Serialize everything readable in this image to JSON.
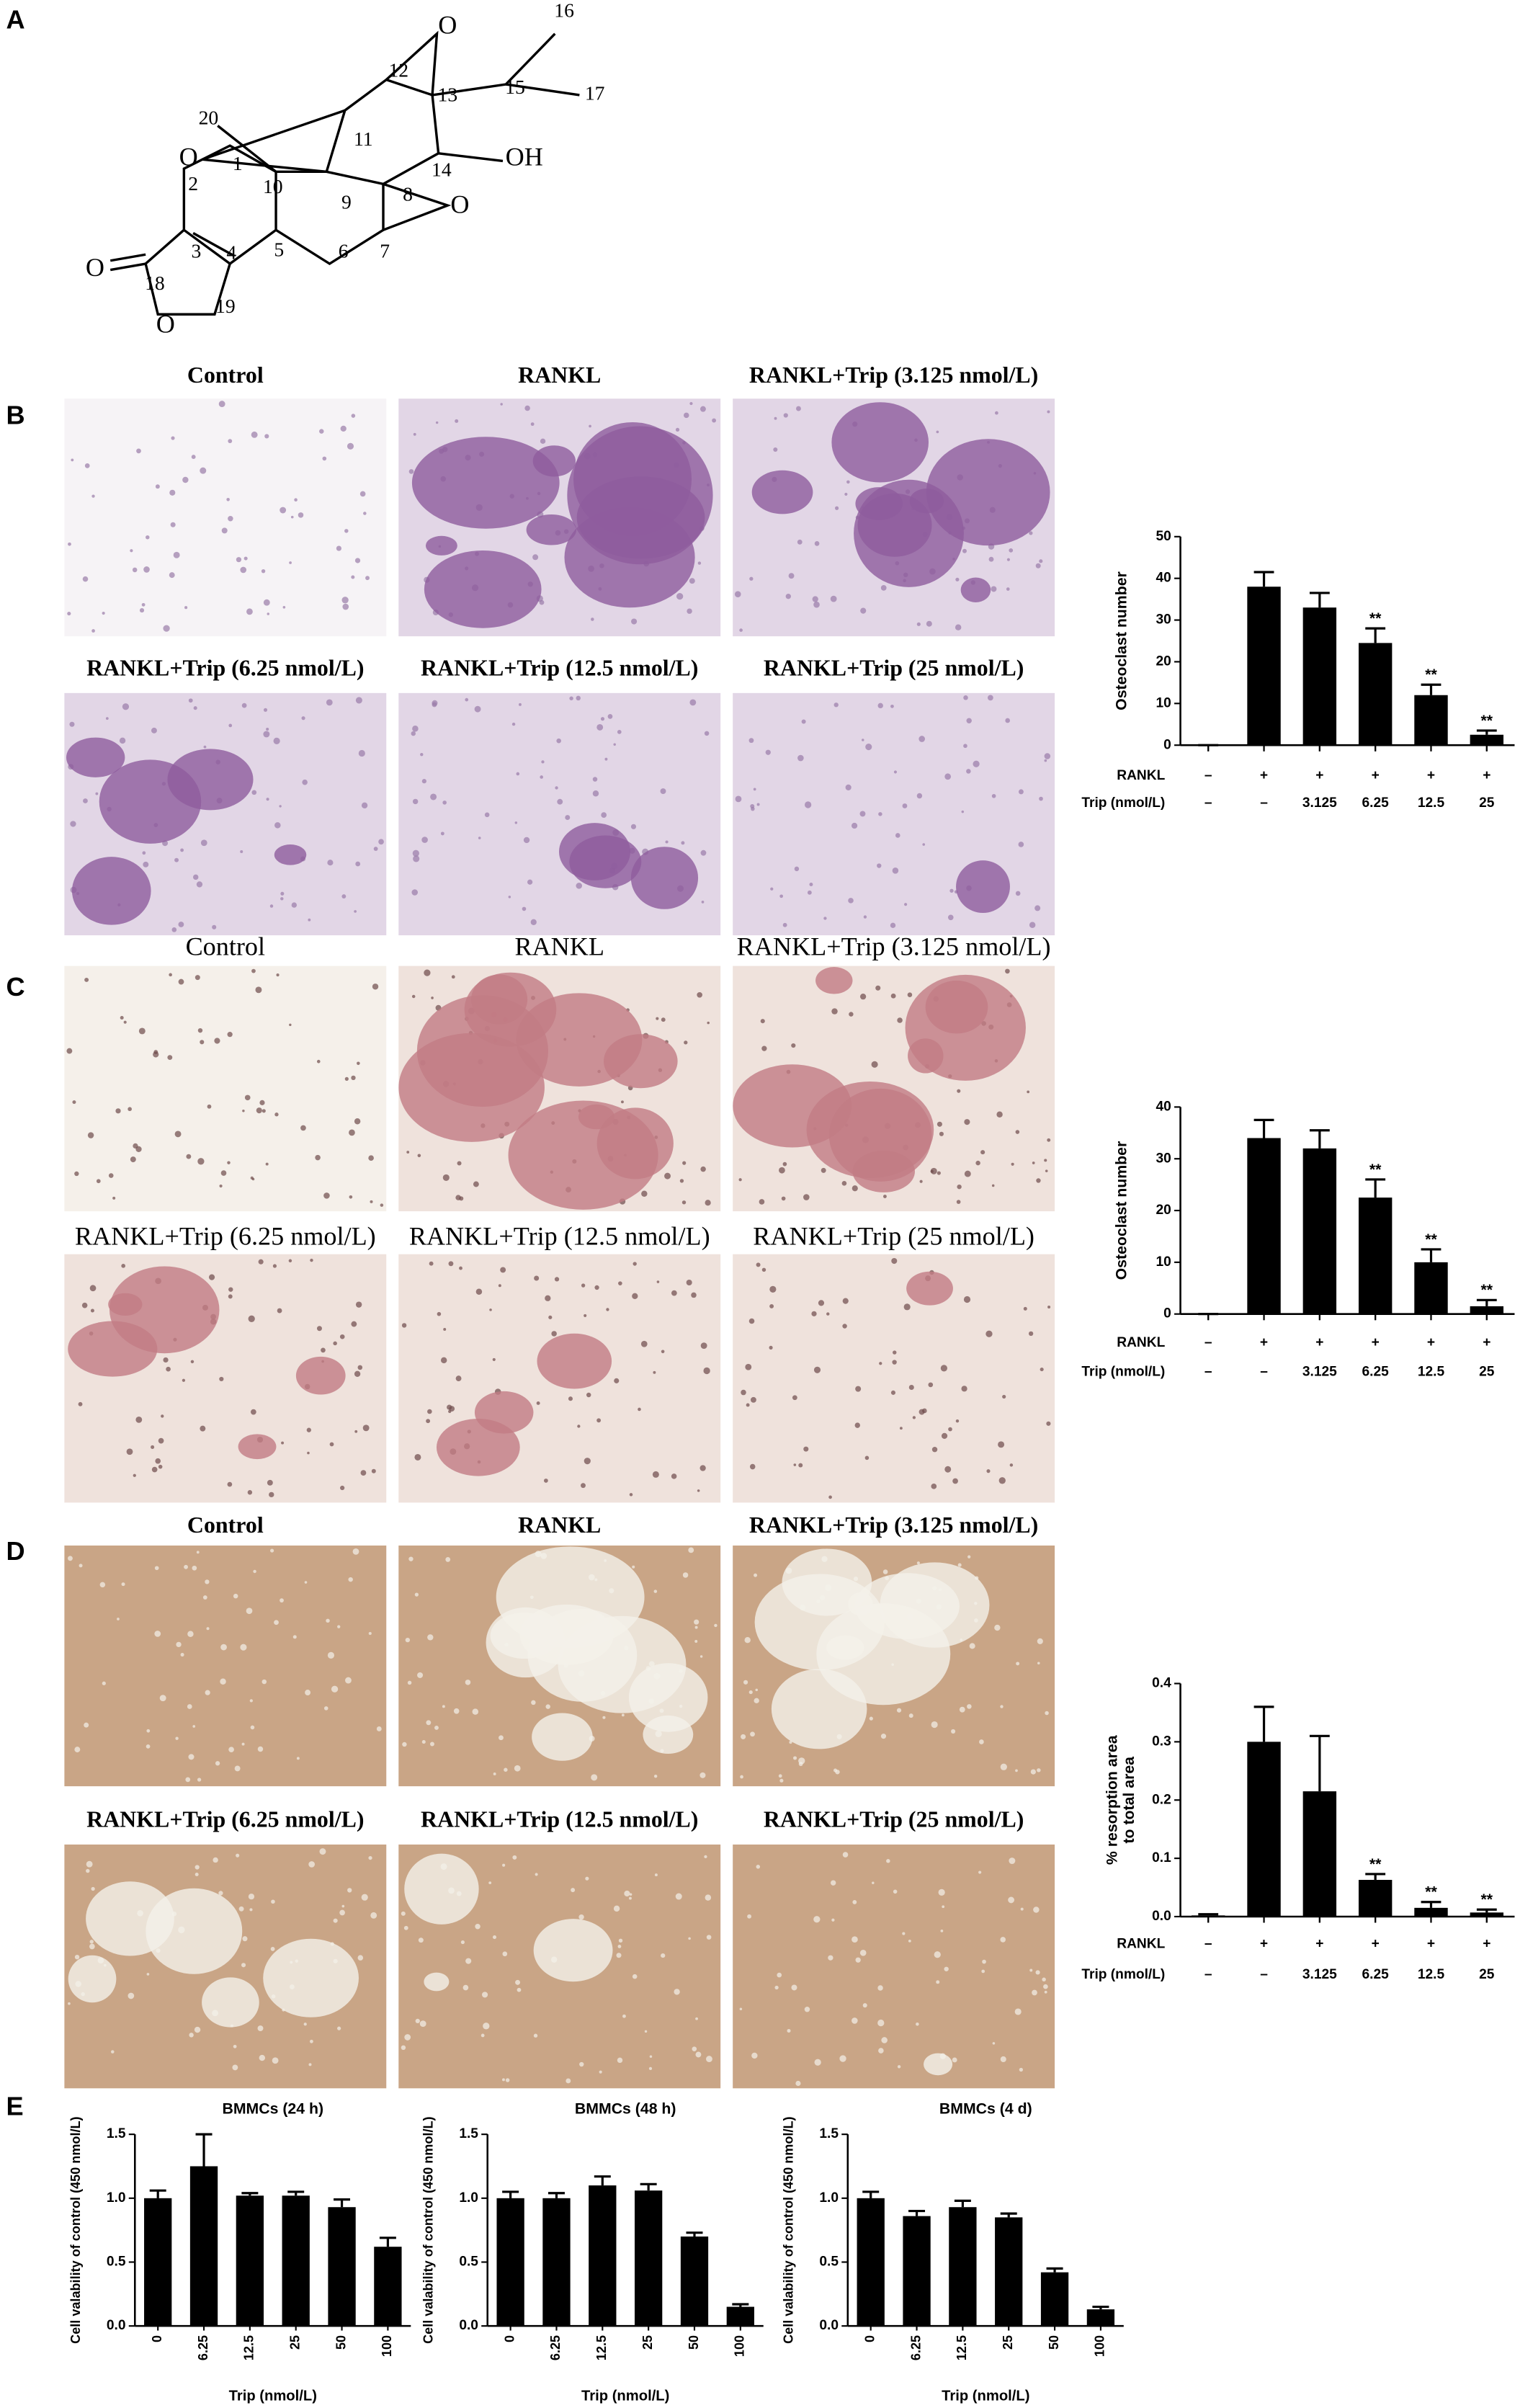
{
  "panel_labels": [
    "A",
    "B",
    "C",
    "D",
    "E"
  ],
  "structure": {
    "labels": [
      "16",
      "O",
      "17",
      "15",
      "13",
      "12",
      "20",
      "11",
      "O",
      "1",
      "14",
      "OH",
      "10",
      "9",
      "2",
      "8",
      "O",
      "3",
      "5",
      "7",
      "6",
      "4",
      "18",
      "19",
      "O",
      "O"
    ]
  },
  "micrographs": [
    {
      "titles": [
        "Control",
        "RANKL",
        "RANKL+Trip (3.125 nmol/L)",
        "RANKL+Trip (6.25 nmol/L)",
        "RANKL+Trip (12.5 nmol/L)",
        "RANKL+Trip (25 nmol/L)"
      ]
    },
    {
      "titles": [
        "Control",
        "RANKL",
        "RANKL+Trip (3.125 nmol/L)",
        "RANKL+Trip (6.25 nmol/L)",
        "RANKL+Trip (12.5 nmol/L)",
        "RANKL+Trip (25 nmol/L)"
      ]
    },
    {
      "titles": [
        "Control",
        "RANKL",
        "RANKL+Trip (3.125 nmol/L)",
        "RANKL+Trip (6.25 nmol/L)",
        "RANKL+Trip (12.5 nmol/L)",
        "RANKL+Trip (25 nmol/L)"
      ]
    }
  ],
  "chart_data": [
    {
      "type": "bar",
      "ylabel": [
        "Osteoclast number"
      ],
      "color": "#000000",
      "values": [
        0,
        38,
        33,
        24.5,
        12,
        2.5
      ],
      "errors": [
        0,
        3.5,
        3.5,
        3.5,
        2.5,
        1
      ],
      "significance": [
        null,
        null,
        null,
        "**",
        "**",
        "**"
      ],
      "ylim": [
        0,
        50
      ],
      "yticks": [
        0,
        10,
        20,
        30,
        40,
        50
      ],
      "rows": [
        {
          "label": "RANKL",
          "cells": [
            "–",
            "+",
            "+",
            "+",
            "+",
            "+"
          ]
        },
        {
          "label": "Trip (nmol/L)",
          "cells": [
            "–",
            "–",
            "3.125",
            "6.25",
            "12.5",
            "25"
          ]
        }
      ]
    },
    {
      "type": "bar",
      "ylabel": [
        "Osteoclast number"
      ],
      "color": "#000000",
      "values": [
        0,
        34,
        32,
        22.5,
        10,
        1.5
      ],
      "errors": [
        0,
        3.5,
        3.5,
        3.5,
        2.5,
        1.2
      ],
      "significance": [
        null,
        null,
        null,
        "**",
        "**",
        "**"
      ],
      "ylim": [
        0,
        40
      ],
      "yticks": [
        0,
        10,
        20,
        30,
        40
      ],
      "rows": [
        {
          "label": "RANKL",
          "cells": [
            "–",
            "+",
            "+",
            "+",
            "+",
            "+"
          ]
        },
        {
          "label": "Trip (nmol/L)",
          "cells": [
            "–",
            "–",
            "3.125",
            "6.25",
            "12.5",
            "25"
          ]
        }
      ]
    },
    {
      "type": "bar",
      "ylabel": [
        "% resorption area",
        "to total area"
      ],
      "color": "#000000",
      "values": [
        0.002,
        0.3,
        0.215,
        0.063,
        0.015,
        0.007
      ],
      "errors": [
        0.002,
        0.06,
        0.095,
        0.01,
        0.01,
        0.005
      ],
      "significance": [
        null,
        null,
        null,
        "**",
        "**",
        "**"
      ],
      "ylim": [
        0,
        0.4
      ],
      "yticks": [
        {
          "value": 0,
          "label": "0.0"
        },
        0.1,
        0.2,
        0.3,
        0.4
      ],
      "rows": [
        {
          "label": "RANKL",
          "cells": [
            "–",
            "+",
            "+",
            "+",
            "+",
            "+"
          ]
        },
        {
          "label": "Trip (nmol/L)",
          "cells": [
            "–",
            "–",
            "3.125",
            "6.25",
            "12.5",
            "25"
          ]
        }
      ]
    },
    {
      "type": "bar",
      "title": "BMMCs (24 h)",
      "xlabel": "Trip (nmol/L)",
      "ylabel": [
        "Cell valability of control (450 nmol/L)"
      ],
      "color": "#000000",
      "categories": [
        "0",
        "6.25",
        "12.5",
        "25",
        "50",
        "100"
      ],
      "values": [
        1.0,
        1.25,
        1.02,
        1.02,
        0.93,
        0.62
      ],
      "errors": [
        0.06,
        0.25,
        0.02,
        0.03,
        0.06,
        0.07
      ],
      "ylim": [
        0,
        1.5
      ],
      "yticks": [
        {
          "value": 0,
          "label": "0.0"
        },
        0.5,
        {
          "value": 1,
          "label": "1.0"
        },
        1.5
      ]
    },
    {
      "type": "bar",
      "title": "BMMCs (48 h)",
      "xlabel": "Trip (nmol/L)",
      "ylabel": [
        "Cell valability of control (450 nmol/L)"
      ],
      "color": "#000000",
      "categories": [
        "0",
        "6.25",
        "12.5",
        "25",
        "50",
        "100"
      ],
      "values": [
        1.0,
        1.0,
        1.1,
        1.06,
        0.7,
        0.15
      ],
      "errors": [
        0.05,
        0.04,
        0.07,
        0.05,
        0.03,
        0.02
      ],
      "ylim": [
        0,
        1.5
      ],
      "yticks": [
        {
          "value": 0,
          "label": "0.0"
        },
        0.5,
        {
          "value": 1,
          "label": "1.0"
        },
        1.5
      ]
    },
    {
      "type": "bar",
      "title": "BMMCs (4 d)",
      "xlabel": "Trip (nmol/L)",
      "ylabel": [
        "Cell valability of control (450 nmol/L)"
      ],
      "color": "#000000",
      "categories": [
        "0",
        "6.25",
        "12.5",
        "25",
        "50",
        "100"
      ],
      "values": [
        1.0,
        0.86,
        0.93,
        0.85,
        0.42,
        0.13
      ],
      "errors": [
        0.05,
        0.04,
        0.05,
        0.03,
        0.03,
        0.02
      ],
      "ylim": [
        0,
        1.5
      ],
      "yticks": [
        {
          "value": 0,
          "label": "0.0"
        },
        0.5,
        {
          "value": 1,
          "label": "1.0"
        },
        1.5
      ]
    }
  ]
}
